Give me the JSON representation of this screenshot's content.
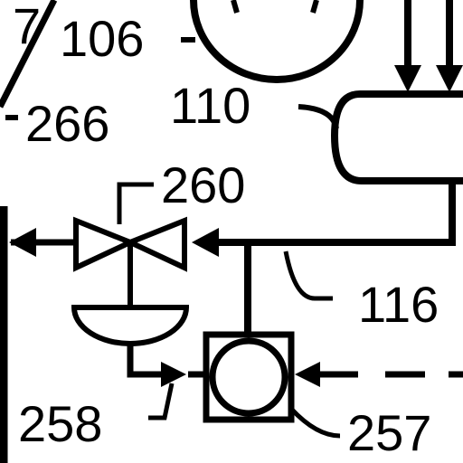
{
  "labels": {
    "l7": "7",
    "l106": "106",
    "l266": "266",
    "l110": "110",
    "l260": "260",
    "l116": "116",
    "l258": "258",
    "l257": "257"
  },
  "colors": {
    "ink": "#000000",
    "paper": "#ffffff"
  }
}
